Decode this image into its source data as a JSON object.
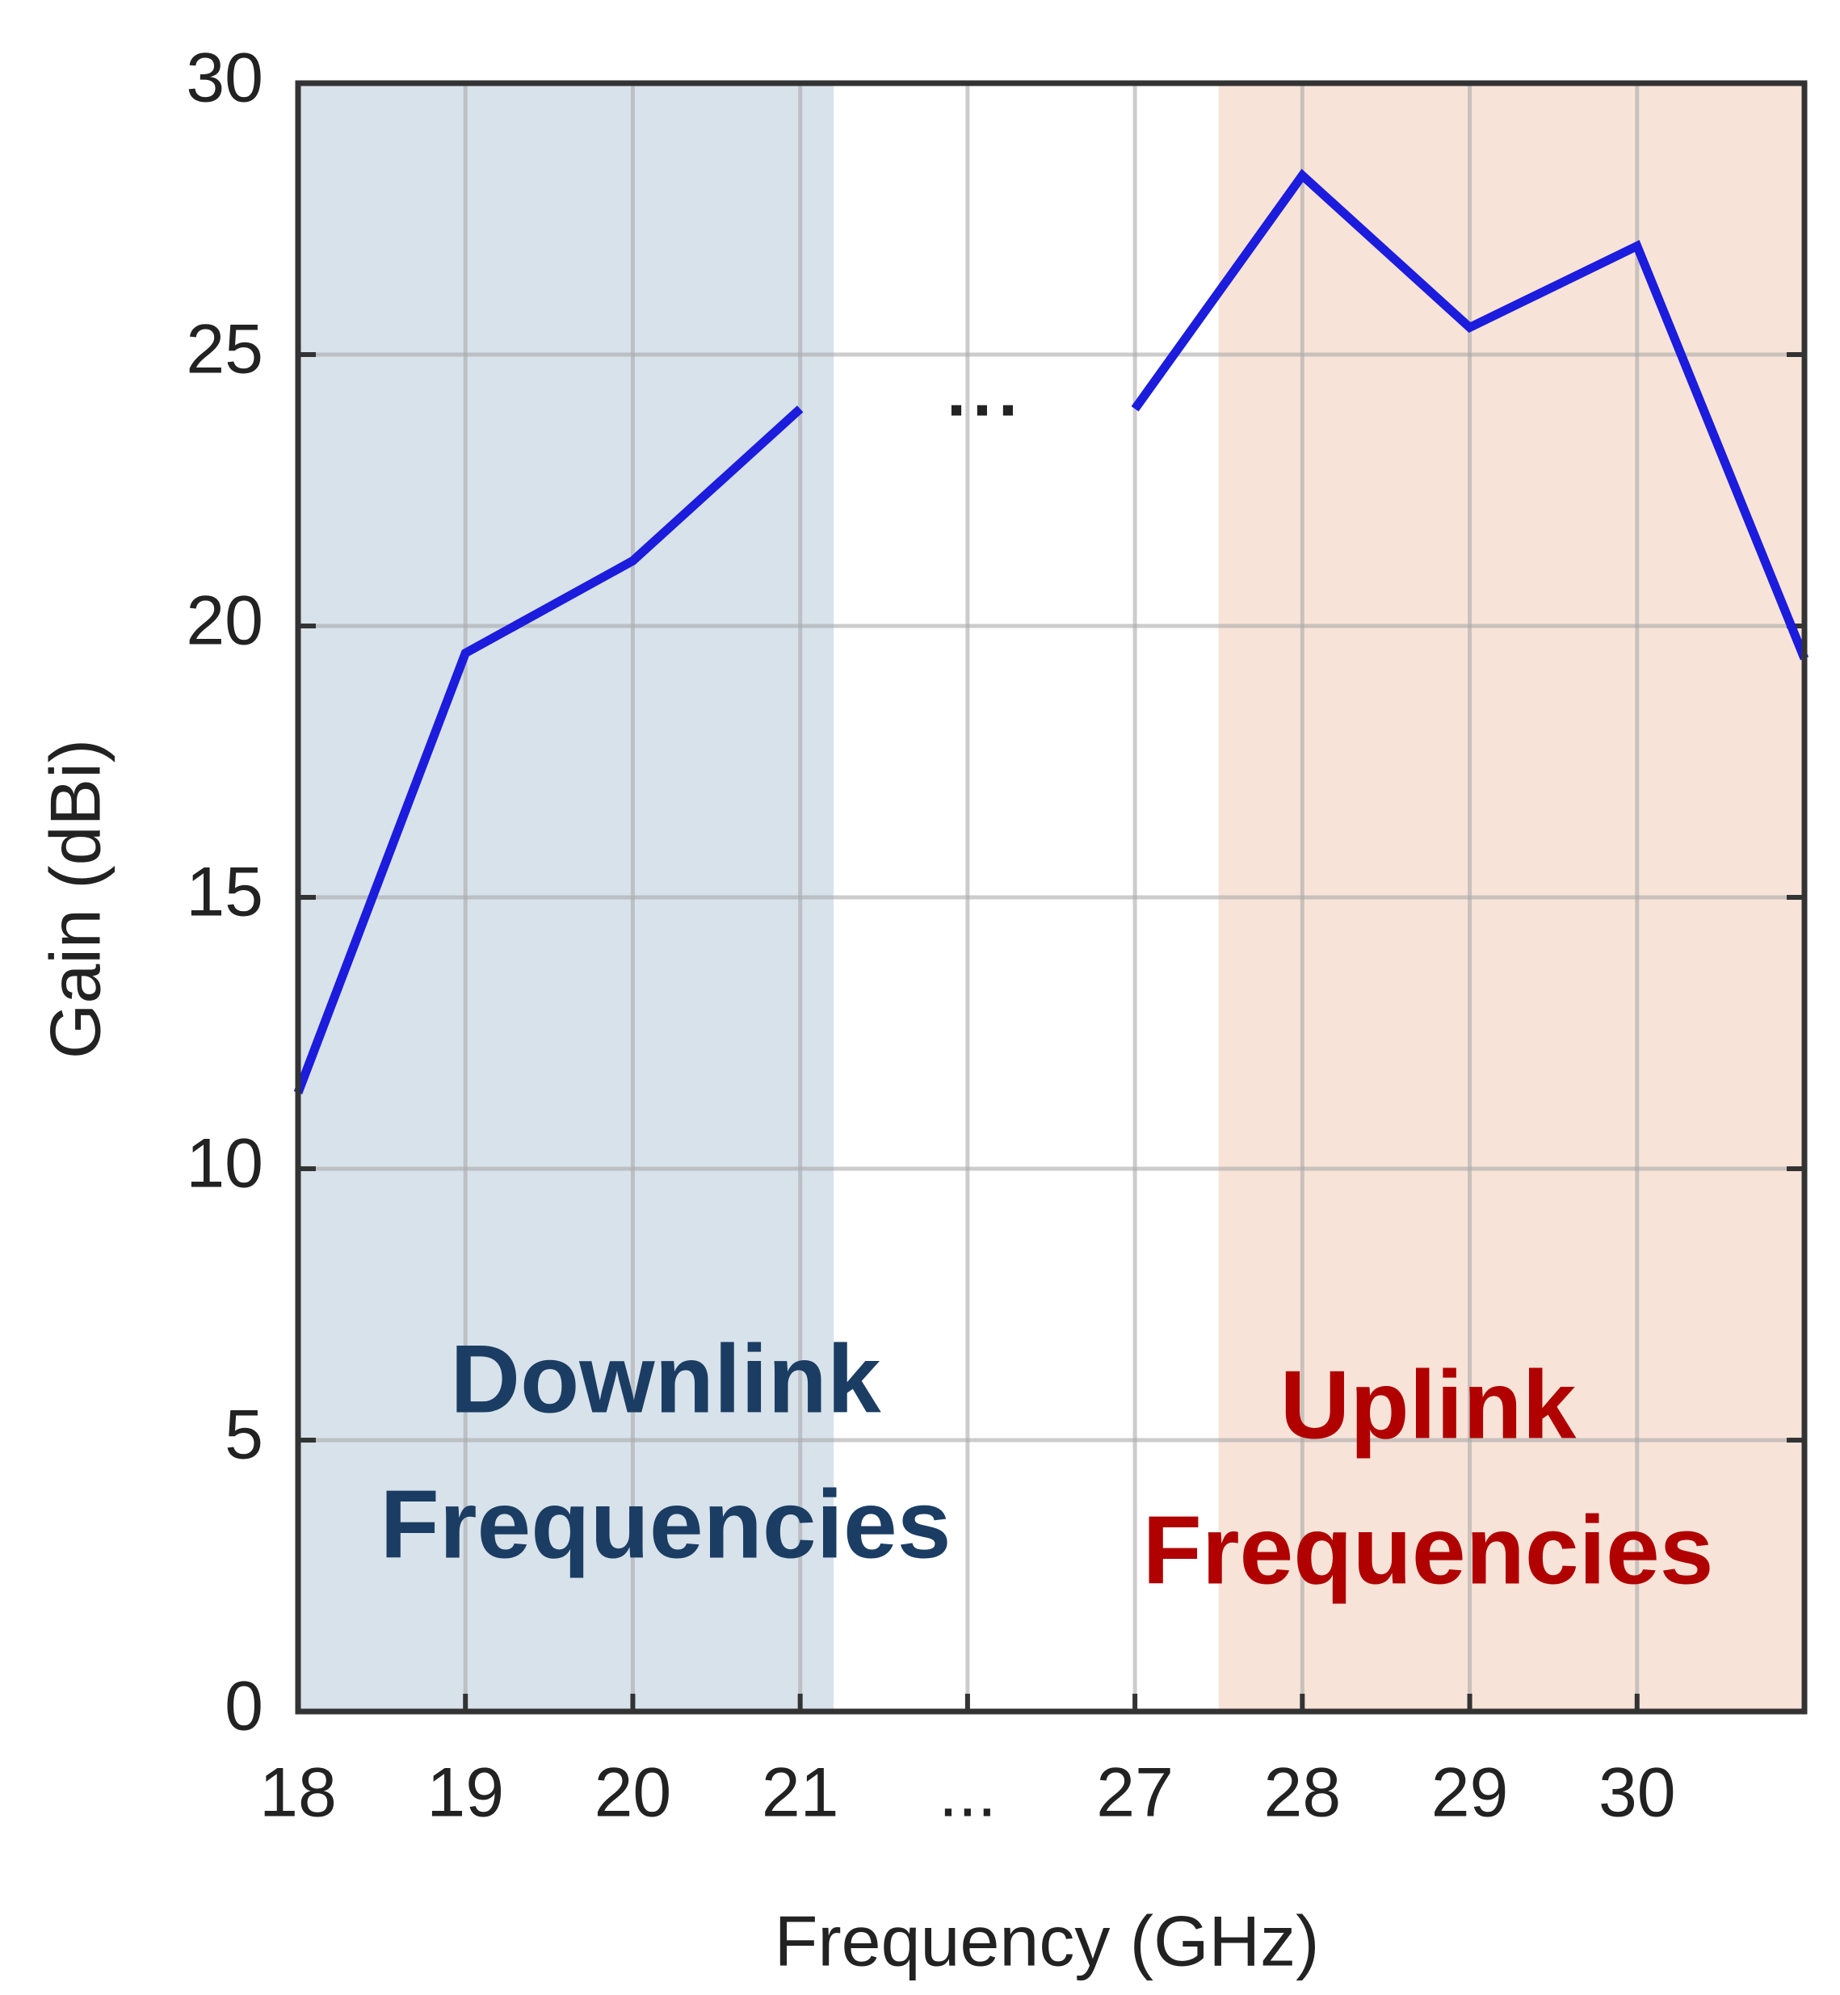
{
  "chart_data": {
    "type": "line",
    "x_label": "Frequency (GHz)",
    "y_label": "Gain (dBi)",
    "categories": [
      "18",
      "19",
      "20",
      "21",
      "...",
      "27",
      "28",
      "29",
      "30",
      null
    ],
    "series": [
      {
        "name": "Gain",
        "color": "#1c1cdc",
        "values": [
          11.4,
          19.5,
          21.2,
          24.0,
          null,
          24.0,
          28.3,
          25.5,
          27.0,
          19.4
        ]
      }
    ],
    "ylim": [
      0,
      30
    ],
    "yticks": [
      0,
      5,
      10,
      15,
      20,
      25,
      30
    ],
    "grid": true,
    "annotations": [
      "..."
    ],
    "regions": [
      {
        "lines": [
          "Downlink",
          "Frequencies"
        ],
        "xrange": [
          0,
          3.2
        ],
        "color": "#d8e2ea",
        "text_color": "#1b3d63"
      },
      {
        "lines": [
          "Uplink",
          "Frequencies"
        ],
        "xrange": [
          5.5,
          9
        ],
        "color": "#f8e3d8",
        "text_color": "#b00000"
      }
    ]
  }
}
